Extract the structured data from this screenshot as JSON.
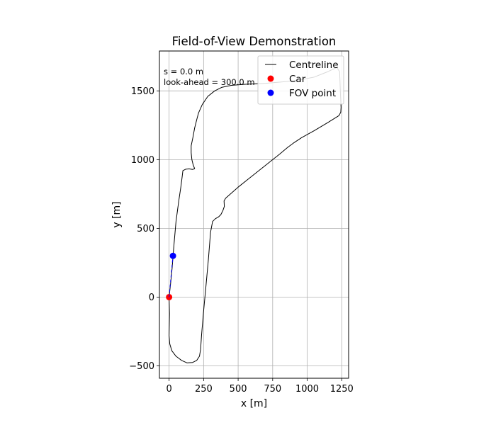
{
  "chart_data": {
    "type": "line",
    "title": "Field-of-View Demonstration",
    "xlabel": "x  [m]",
    "ylabel": "y  [m]",
    "xlim": [
      -70,
      1300
    ],
    "ylim": [
      -590,
      1790
    ],
    "xticks": [
      0,
      250,
      500,
      750,
      1000,
      1250
    ],
    "yticks": [
      -500,
      0,
      500,
      1000,
      1500
    ],
    "grid": true,
    "aspect": "equal",
    "legend_position": "top-right",
    "annotations": [
      "s = 0.0 m",
      "look-ahead = 300.0 m"
    ],
    "series": [
      {
        "name": "Centreline",
        "kind": "line",
        "color": "#000000",
        "points": [
          [
            0,
            0
          ],
          [
            3,
            -120
          ],
          [
            0,
            -280
          ],
          [
            5,
            -340
          ],
          [
            20,
            -390
          ],
          [
            50,
            -430
          ],
          [
            90,
            -460
          ],
          [
            130,
            -478
          ],
          [
            170,
            -475
          ],
          [
            200,
            -460
          ],
          [
            220,
            -430
          ],
          [
            228,
            -380
          ],
          [
            235,
            -280
          ],
          [
            248,
            -120
          ],
          [
            265,
            60
          ],
          [
            285,
            280
          ],
          [
            300,
            470
          ],
          [
            315,
            550
          ],
          [
            335,
            570
          ],
          [
            360,
            585
          ],
          [
            375,
            600
          ],
          [
            390,
            630
          ],
          [
            400,
            660
          ],
          [
            398,
            700
          ],
          [
            410,
            720
          ],
          [
            500,
            800
          ],
          [
            600,
            880
          ],
          [
            700,
            960
          ],
          [
            800,
            1040
          ],
          [
            860,
            1090
          ],
          [
            900,
            1120
          ],
          [
            960,
            1160
          ],
          [
            1050,
            1210
          ],
          [
            1150,
            1270
          ],
          [
            1230,
            1320
          ],
          [
            1243,
            1345
          ],
          [
            1245,
            1380
          ],
          [
            1240,
            1500
          ],
          [
            1235,
            1640
          ],
          [
            1215,
            1670
          ],
          [
            1150,
            1640
          ],
          [
            1050,
            1600
          ],
          [
            950,
            1580
          ],
          [
            850,
            1568
          ],
          [
            700,
            1555
          ],
          [
            550,
            1548
          ],
          [
            450,
            1540
          ],
          [
            380,
            1525
          ],
          [
            330,
            1500
          ],
          [
            280,
            1460
          ],
          [
            240,
            1400
          ],
          [
            213,
            1340
          ],
          [
            200,
            1290
          ],
          [
            185,
            1230
          ],
          [
            172,
            1160
          ],
          [
            160,
            1100
          ],
          [
            160,
            1050
          ],
          [
            165,
            1000
          ],
          [
            175,
            960
          ],
          [
            185,
            935
          ],
          [
            170,
            928
          ],
          [
            145,
            933
          ],
          [
            120,
            930
          ],
          [
            100,
            920
          ],
          [
            95,
            880
          ],
          [
            85,
            800
          ],
          [
            70,
            700
          ],
          [
            50,
            550
          ],
          [
            35,
            380
          ],
          [
            22,
            210
          ],
          [
            10,
            90
          ],
          [
            0,
            0
          ]
        ]
      },
      {
        "name": "Car",
        "kind": "marker",
        "color": "#ff0000",
        "points": [
          [
            0,
            0
          ]
        ]
      },
      {
        "name": "FOV point",
        "kind": "marker",
        "color": "#0000ff",
        "points": [
          [
            28,
            300
          ]
        ]
      },
      {
        "name": "",
        "kind": "dashed",
        "color": "#0000ff",
        "points": [
          [
            0,
            0
          ],
          [
            28,
            300
          ]
        ]
      }
    ]
  }
}
